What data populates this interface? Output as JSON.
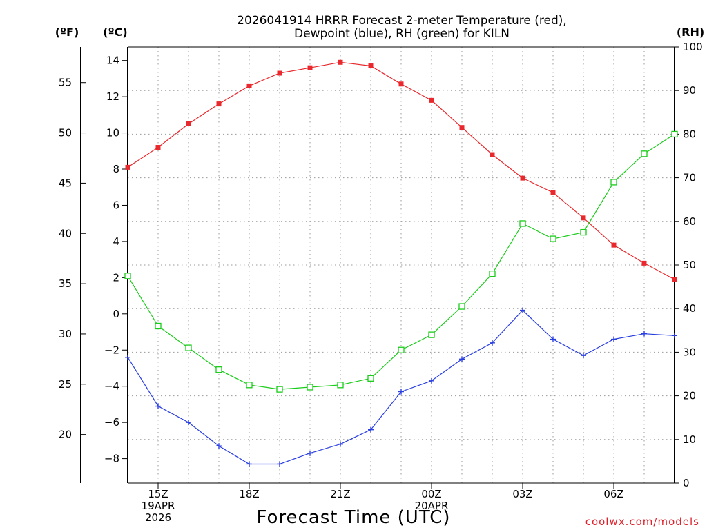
{
  "chart_data": {
    "type": "line",
    "title_line1": "2026041914 HRRR Forecast 2-meter Temperature (red),",
    "title_line2": "Dewpoint (blue), RH (green) for KILN",
    "xlabel": "Forecast Time (UTC)",
    "credit": "coolwx.com/models",
    "unit_f": "(ºF)",
    "unit_c": "(ºC)",
    "unit_rh": "(RH)",
    "hours": [
      14,
      15,
      16,
      17,
      18,
      19,
      20,
      21,
      22,
      23,
      24,
      25,
      26,
      27,
      28,
      29,
      30,
      31,
      32
    ],
    "x_ticks": [
      {
        "hour": 15,
        "lines": [
          "15Z",
          "19APR",
          "2026"
        ]
      },
      {
        "hour": 18,
        "lines": [
          "18Z"
        ]
      },
      {
        "hour": 21,
        "lines": [
          "21Z"
        ]
      },
      {
        "hour": 24,
        "lines": [
          "00Z",
          "20APR"
        ]
      },
      {
        "hour": 27,
        "lines": [
          "03Z"
        ]
      },
      {
        "hour": 30,
        "lines": [
          "06Z"
        ]
      }
    ],
    "celsius_axis": {
      "range": [
        -9.35,
        14.75
      ],
      "ticks": [
        "14",
        "12",
        "10",
        "8",
        "6",
        "4",
        "2",
        "0",
        "−2",
        "−4",
        "−6",
        "−8"
      ]
    },
    "fahrenheit_axis": {
      "ticks": [
        "55",
        "50",
        "45",
        "40",
        "35",
        "30",
        "25",
        "20"
      ]
    },
    "rh_axis": {
      "range": [
        0,
        100
      ],
      "ticks": [
        "100",
        "90",
        "80",
        "70",
        "60",
        "50",
        "40",
        "30",
        "20",
        "10",
        "0"
      ]
    },
    "series": [
      {
        "name": "Temperature",
        "unit": "C",
        "color": "#e8282c",
        "marker": "filled-square",
        "values": [
          8.1,
          9.2,
          10.5,
          11.6,
          12.6,
          13.3,
          13.6,
          13.9,
          13.7,
          12.7,
          11.8,
          10.3,
          8.8,
          7.5,
          6.7,
          5.3,
          3.8,
          2.8,
          1.9
        ]
      },
      {
        "name": "Dewpoint",
        "unit": "C",
        "color": "#2a3fe0",
        "marker": "plus",
        "values": [
          -2.4,
          -5.1,
          -6.0,
          -7.3,
          -8.3,
          -8.3,
          -7.7,
          -7.2,
          -6.4,
          -4.3,
          -3.7,
          -2.5,
          -1.6,
          0.2,
          -1.4,
          -2.3,
          -1.4,
          -1.1,
          -1.2
        ]
      },
      {
        "name": "RH",
        "unit": "%",
        "color": "#19cc19",
        "marker": "open-square",
        "values": [
          47.5,
          36,
          31,
          26,
          22.5,
          21.5,
          22,
          22.5,
          24,
          30.5,
          34,
          40.5,
          48,
          59.5,
          56,
          57.5,
          69,
          75.5,
          80
        ]
      }
    ]
  }
}
